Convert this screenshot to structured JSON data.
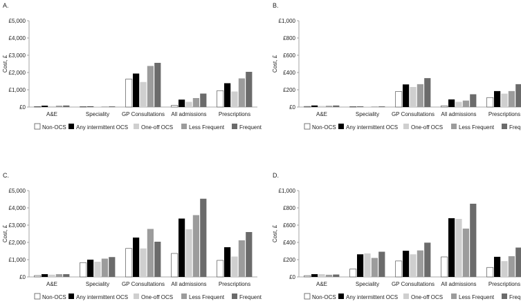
{
  "colors": {
    "series": [
      "#ffffff",
      "#000000",
      "#cfcfcf",
      "#9c9c9c",
      "#6b6b6b"
    ],
    "axis": "#8c8c8c",
    "outline": "#555555"
  },
  "chart_data": [
    {
      "type": "bar",
      "panel_label": "A.",
      "ylabel": "Cost, £",
      "ylim": [
        0,
        5000
      ],
      "yticks": [
        "£0",
        "£1,000",
        "£2,000",
        "£3,000",
        "£4,000",
        "£5,000"
      ],
      "categories": [
        "A&E",
        "Speciality",
        "GP Consultations",
        "All admissions",
        "Prescriptions"
      ],
      "series": [
        {
          "name": "Non-OCS",
          "values": [
            30,
            10,
            1620,
            100,
            950
          ]
        },
        {
          "name": "Any intermittent OCS",
          "values": [
            80,
            30,
            1940,
            430,
            1380
          ]
        },
        {
          "name": "One-off OCS",
          "values": [
            50,
            20,
            1450,
            300,
            900
          ]
        },
        {
          "name": "Less Frequent",
          "values": [
            80,
            30,
            2380,
            520,
            1660
          ]
        },
        {
          "name": "Frequent",
          "values": [
            90,
            40,
            2560,
            780,
            2040
          ]
        }
      ]
    },
    {
      "type": "bar",
      "panel_label": "B.",
      "ylabel": "Cost, £",
      "ylim": [
        0,
        1000
      ],
      "yticks": [
        "£0",
        "£200",
        "£400",
        "£600",
        "£800",
        "£1,000"
      ],
      "categories": [
        "A&E",
        "Speciality",
        "GP Consultations",
        "All admissions",
        "Prescriptions"
      ],
      "series": [
        {
          "name": "Non-OCS",
          "values": [
            7,
            2,
            180,
            15,
            110
          ]
        },
        {
          "name": "Any intermittent OCS",
          "values": [
            18,
            5,
            262,
            88,
            185
          ]
        },
        {
          "name": "One-off OCS",
          "values": [
            12,
            3,
            232,
            60,
            155
          ]
        },
        {
          "name": "Less Frequent",
          "values": [
            15,
            6,
            265,
            75,
            185
          ]
        },
        {
          "name": "Frequent",
          "values": [
            18,
            8,
            335,
            148,
            265
          ]
        }
      ]
    },
    {
      "type": "bar",
      "panel_label": "C.",
      "ylabel": "Cost, £",
      "ylim": [
        0,
        5000
      ],
      "yticks": [
        "£0",
        "£1,000",
        "£2,000",
        "£3,000",
        "£4,000",
        "£5,000"
      ],
      "categories": [
        "A&E",
        "Speciality",
        "GP Consultations",
        "All admissions",
        "Prescriptions"
      ],
      "series": [
        {
          "name": "Non-OCS",
          "values": [
            80,
            830,
            1650,
            1360,
            960
          ]
        },
        {
          "name": "Any intermittent OCS",
          "values": [
            160,
            1000,
            2280,
            3380,
            1720
          ]
        },
        {
          "name": "One-off OCS",
          "values": [
            130,
            880,
            1650,
            2760,
            1180
          ]
        },
        {
          "name": "Less Frequent",
          "values": [
            160,
            1060,
            2780,
            3580,
            2120
          ]
        },
        {
          "name": "Frequent",
          "values": [
            160,
            1150,
            2040,
            4530,
            2600
          ]
        }
      ]
    },
    {
      "type": "bar",
      "panel_label": "D.",
      "ylabel": "Cost, £",
      "ylim": [
        0,
        1000
      ],
      "yticks": [
        "£0",
        "£200",
        "£400",
        "£600",
        "£800",
        "£1,000"
      ],
      "categories": [
        "A&E",
        "Speciality",
        "GP Consultations",
        "All admissions",
        "Prescriptions"
      ],
      "series": [
        {
          "name": "Non-OCS",
          "values": [
            15,
            92,
            185,
            232,
            110
          ]
        },
        {
          "name": "Any intermittent OCS",
          "values": [
            32,
            262,
            303,
            680,
            233
          ]
        },
        {
          "name": "One-off OCS",
          "values": [
            32,
            272,
            262,
            672,
            183
          ]
        },
        {
          "name": "Less Frequent",
          "values": [
            25,
            220,
            307,
            560,
            240
          ]
        },
        {
          "name": "Frequent",
          "values": [
            28,
            292,
            397,
            848,
            340
          ]
        }
      ]
    }
  ]
}
